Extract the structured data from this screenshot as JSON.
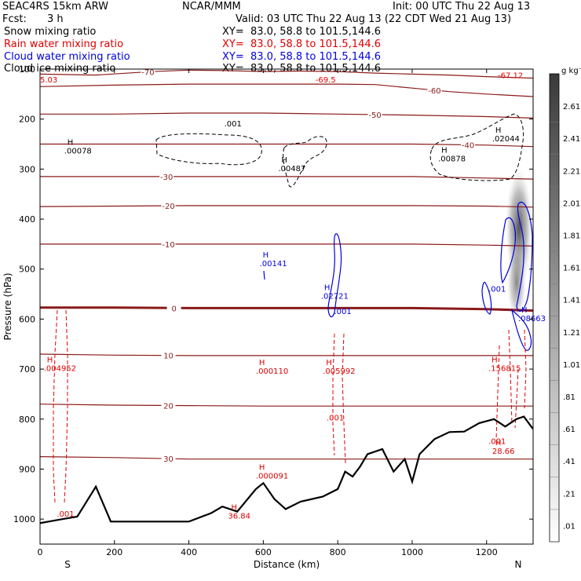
{
  "header": {
    "model": "SEAC4RS 15km ARW",
    "org": "NCAR/MMM",
    "init": "Init: 00 UTC Thu 22 Aug 13",
    "fcst_label": "Fcst:",
    "fcst_value": "3 h",
    "valid": "Valid: 03 UTC Thu 22 Aug 13 (22 CDT Wed 21 Aug 13)",
    "lines": [
      {
        "label": "Snow mixing ratio",
        "xy": "XY=  83.0, 58.8 to 101.5,144.6",
        "color": "#000000"
      },
      {
        "label": "Rain water mixing ratio",
        "xy": "XY=  83.0, 58.8 to 101.5,144.6",
        "color": "#e00000"
      },
      {
        "label": "Cloud water mixing ratio",
        "xy": "XY=  83.0, 58.8 to 101.5,144.6",
        "color": "#0000e0"
      },
      {
        "label": "Cloud ice mixing ratio",
        "xy": "XY=  83.0, 58.8 to 101.5,144.6",
        "color": "#000000"
      }
    ]
  },
  "chart_data": {
    "type": "cross-section",
    "xlabel": "Distance (km)",
    "ylabel": "Pressure (hPa)",
    "xlim": [
      0,
      1325
    ],
    "ylim": [
      1050,
      100
    ],
    "xticks": [
      0,
      200,
      400,
      600,
      800,
      1000,
      1200
    ],
    "yticks": [
      100,
      200,
      300,
      400,
      500,
      600,
      700,
      800,
      900,
      1000
    ],
    "ytick_labels": [
      "100",
      "200",
      "300",
      "400",
      "500",
      "600",
      "700",
      "800",
      "900",
      "1000"
    ],
    "endpoint_labels": {
      "left": "S",
      "right": "N"
    },
    "colorbar": {
      "unit": "g kg⁻¹",
      "levels": [
        ".01",
        ".21",
        ".41",
        ".61",
        ".81",
        "1.01",
        "1.21",
        "1.41",
        "1.61",
        "1.81",
        "2.01",
        "2.21",
        "2.41",
        "2.61"
      ]
    },
    "temperature_contours": [
      {
        "label": "-70",
        "label_x": 290,
        "points": [
          [
            0,
            110
          ],
          [
            150,
            112
          ],
          [
            300,
            105
          ],
          [
            400,
            102
          ],
          [
            500,
            103
          ],
          [
            600,
            105
          ],
          [
            700,
            104
          ],
          [
            800,
            105
          ],
          [
            900,
            108
          ],
          [
            1000,
            110
          ],
          [
            1100,
            112
          ],
          [
            1200,
            115
          ],
          [
            1325,
            118
          ]
        ]
      },
      {
        "label": "-60",
        "label_x": 1060,
        "points": [
          [
            0,
            135
          ],
          [
            200,
            132
          ],
          [
            400,
            130
          ],
          [
            600,
            130
          ],
          [
            800,
            130
          ],
          [
            900,
            131
          ],
          [
            1000,
            138
          ],
          [
            1100,
            145
          ],
          [
            1200,
            150
          ],
          [
            1325,
            155
          ]
        ]
      },
      {
        "label": "-50",
        "label_x": 900,
        "points": [
          [
            0,
            190
          ],
          [
            200,
            190
          ],
          [
            400,
            188
          ],
          [
            600,
            188
          ],
          [
            800,
            190
          ],
          [
            1000,
            192
          ],
          [
            1200,
            195
          ],
          [
            1325,
            198
          ]
        ]
      },
      {
        "label": "-40",
        "label_x": 1150,
        "points": [
          [
            0,
            250
          ],
          [
            200,
            250
          ],
          [
            400,
            250
          ],
          [
            600,
            250
          ],
          [
            800,
            250
          ],
          [
            1000,
            250
          ],
          [
            1200,
            252
          ],
          [
            1325,
            255
          ]
        ]
      },
      {
        "label": "-30",
        "label_x": 340,
        "points": [
          [
            0,
            315
          ],
          [
            200,
            315
          ],
          [
            400,
            315
          ],
          [
            600,
            315
          ],
          [
            800,
            315
          ],
          [
            1000,
            315
          ],
          [
            1200,
            318
          ],
          [
            1325,
            320
          ]
        ]
      },
      {
        "label": "-20",
        "label_x": 345,
        "points": [
          [
            0,
            375
          ],
          [
            200,
            374
          ],
          [
            400,
            373
          ],
          [
            600,
            373
          ],
          [
            800,
            373
          ],
          [
            1000,
            373
          ],
          [
            1200,
            374
          ],
          [
            1325,
            376
          ]
        ]
      },
      {
        "label": "-10",
        "label_x": 345,
        "points": [
          [
            0,
            450
          ],
          [
            200,
            450
          ],
          [
            400,
            450
          ],
          [
            600,
            450
          ],
          [
            800,
            450
          ],
          [
            1000,
            450
          ],
          [
            1200,
            452
          ],
          [
            1325,
            454
          ]
        ]
      },
      {
        "label": "0",
        "label_x": 360,
        "bold": true,
        "points": [
          [
            0,
            577
          ],
          [
            200,
            577
          ],
          [
            400,
            578
          ],
          [
            600,
            578
          ],
          [
            800,
            578
          ],
          [
            1000,
            578
          ],
          [
            1200,
            580
          ],
          [
            1325,
            583
          ]
        ]
      },
      {
        "label": "10",
        "label_x": 345,
        "points": [
          [
            0,
            670
          ],
          [
            200,
            672
          ],
          [
            400,
            673
          ],
          [
            600,
            673
          ],
          [
            800,
            673
          ],
          [
            1000,
            673
          ],
          [
            1200,
            673
          ],
          [
            1325,
            673
          ]
        ]
      },
      {
        "label": "20",
        "label_x": 345,
        "points": [
          [
            0,
            770
          ],
          [
            200,
            772
          ],
          [
            400,
            773
          ],
          [
            600,
            774
          ],
          [
            800,
            774
          ],
          [
            1000,
            774
          ],
          [
            1200,
            774
          ],
          [
            1325,
            774
          ]
        ]
      },
      {
        "label": "30",
        "label_x": 345,
        "points": [
          [
            0,
            875
          ],
          [
            200,
            877
          ],
          [
            400,
            880
          ],
          [
            600,
            880
          ],
          [
            800,
            880
          ],
          [
            1000,
            880
          ],
          [
            1200,
            880
          ],
          [
            1325,
            880
          ]
        ]
      }
    ],
    "terrain": [
      [
        0,
        1008
      ],
      [
        60,
        1000
      ],
      [
        100,
        995
      ],
      [
        150,
        935
      ],
      [
        190,
        1005
      ],
      [
        300,
        1005
      ],
      [
        400,
        1005
      ],
      [
        460,
        988
      ],
      [
        490,
        975
      ],
      [
        530,
        985
      ],
      [
        580,
        940
      ],
      [
        600,
        928
      ],
      [
        630,
        960
      ],
      [
        660,
        980
      ],
      [
        700,
        965
      ],
      [
        760,
        955
      ],
      [
        800,
        940
      ],
      [
        820,
        905
      ],
      [
        840,
        915
      ],
      [
        860,
        895
      ],
      [
        880,
        870
      ],
      [
        920,
        860
      ],
      [
        950,
        905
      ],
      [
        980,
        880
      ],
      [
        1000,
        925
      ],
      [
        1020,
        870
      ],
      [
        1060,
        840
      ],
      [
        1100,
        826
      ],
      [
        1140,
        825
      ],
      [
        1180,
        808
      ],
      [
        1220,
        800
      ],
      [
        1250,
        815
      ],
      [
        1280,
        800
      ],
      [
        1300,
        795
      ],
      [
        1325,
        820
      ]
    ],
    "h_labels": [
      {
        "text": "H .00078",
        "x": 65,
        "p": 255,
        "color": "#000000"
      },
      {
        "text": "H .00487",
        "x": 640,
        "p": 290,
        "color": "#000000"
      },
      {
        "text": "H .00878",
        "x": 1070,
        "p": 270,
        "color": "#000000"
      },
      {
        "text": "H .02044",
        "x": 1215,
        "p": 230,
        "color": "#000000"
      },
      {
        "text": "H .00141",
        "x": 590,
        "p": 480,
        "color": "#0000e0"
      },
      {
        "text": "H .02721",
        "x": 755,
        "p": 545,
        "color": "#0000e0"
      },
      {
        "text": "H .08663",
        "x": 1285,
        "p": 590,
        "color": "#0000e0"
      },
      {
        "text": "H .004952",
        "x": 10,
        "p": 690,
        "color": "#e00000"
      },
      {
        "text": "H .000110",
        "x": 580,
        "p": 695,
        "color": "#e00000"
      },
      {
        "text": "H .005992",
        "x": 760,
        "p": 695,
        "color": "#e00000"
      },
      {
        "text": "H .156815",
        "x": 1205,
        "p": 690,
        "color": "#e00000"
      },
      {
        "text": "H .000091",
        "x": 580,
        "p": 905,
        "color": "#e00000"
      },
      {
        "text": "H 36.84",
        "x": 505,
        "p": 985,
        "color": "#e00000"
      },
      {
        "text": "H 28.66",
        "x": 1215,
        "p": 855,
        "color": "#e00000"
      }
    ],
    "small_labels": [
      {
        "text": "5.03",
        "x": 0,
        "p": 127,
        "color": "#e00000"
      },
      {
        "text": "-69.5",
        "x": 740,
        "p": 127,
        "color": "#e00000"
      },
      {
        "text": "-67.12",
        "x": 1230,
        "p": 118,
        "color": "#e00000"
      },
      {
        "text": ".001",
        "x": 495,
        "p": 215,
        "color": "#000000"
      },
      {
        "text": ".001",
        "x": 1205,
        "p": 545,
        "color": "#0000e0"
      },
      {
        "text": ".001",
        "x": 790,
        "p": 590,
        "color": "#0000e0"
      },
      {
        "text": ".001",
        "x": 770,
        "p": 803,
        "color": "#e00000"
      },
      {
        "text": ".001",
        "x": 1205,
        "p": 850,
        "color": "#e00000"
      },
      {
        "text": ".001",
        "x": 45,
        "p": 995,
        "color": "#e00000"
      }
    ]
  }
}
